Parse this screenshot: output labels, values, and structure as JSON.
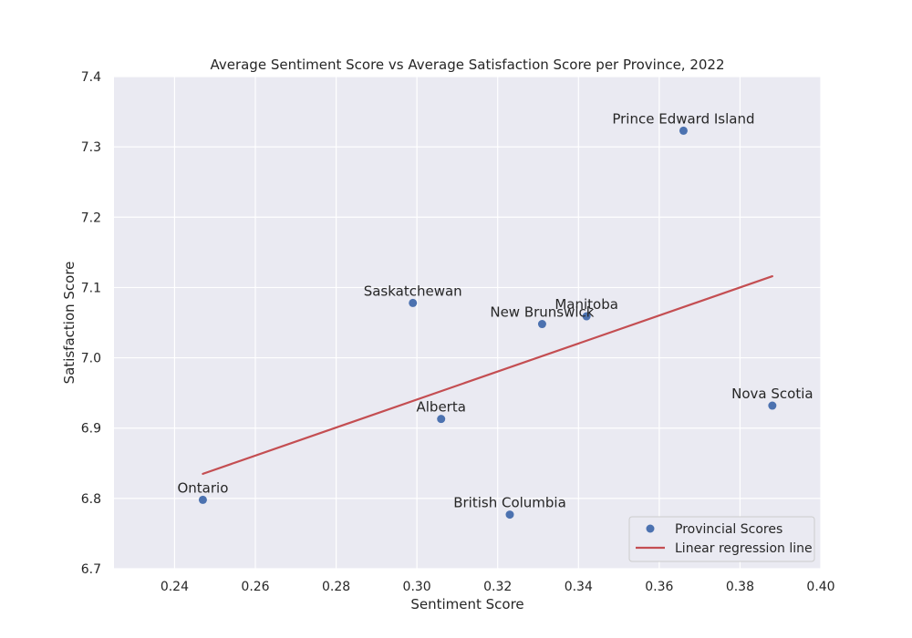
{
  "chart_data": {
    "type": "scatter",
    "title": "Average Sentiment Score vs Average Satisfaction Score per Province, 2022",
    "xlabel": "Sentiment Score",
    "ylabel": "Satisfaction Score",
    "xlim": [
      0.225,
      0.4
    ],
    "ylim": [
      6.7,
      7.4
    ],
    "xticks": [
      0.24,
      0.26,
      0.28,
      0.3,
      0.32,
      0.34,
      0.36,
      0.38,
      0.4
    ],
    "xtick_labels": [
      "0.24",
      "0.26",
      "0.28",
      "0.30",
      "0.32",
      "0.34",
      "0.36",
      "0.38",
      "0.40"
    ],
    "yticks": [
      6.7,
      6.8,
      6.9,
      7.0,
      7.1,
      7.2,
      7.3,
      7.4
    ],
    "ytick_labels": [
      "6.7",
      "6.8",
      "6.9",
      "7.0",
      "7.1",
      "7.2",
      "7.3",
      "7.4"
    ],
    "grid": true,
    "legend_position": "bottom-right",
    "series": [
      {
        "name": "Provincial Scores",
        "kind": "scatter",
        "color": "#4c72b0",
        "points": [
          {
            "label": "Ontario",
            "x": 0.247,
            "y": 6.798
          },
          {
            "label": "Alberta",
            "x": 0.306,
            "y": 6.913
          },
          {
            "label": "Saskatchewan",
            "x": 0.299,
            "y": 7.078
          },
          {
            "label": "British Columbia",
            "x": 0.323,
            "y": 6.777
          },
          {
            "label": "New Brunswick",
            "x": 0.331,
            "y": 7.048
          },
          {
            "label": "Manitoba",
            "x": 0.342,
            "y": 7.059
          },
          {
            "label": "Prince Edward Island",
            "x": 0.366,
            "y": 7.323
          },
          {
            "label": "Nova Scotia",
            "x": 0.388,
            "y": 6.932
          }
        ]
      },
      {
        "name": "Linear regression line",
        "kind": "line",
        "color": "#c44e52",
        "points": [
          {
            "x": 0.247,
            "y": 6.835
          },
          {
            "x": 0.388,
            "y": 7.116
          }
        ]
      }
    ]
  }
}
